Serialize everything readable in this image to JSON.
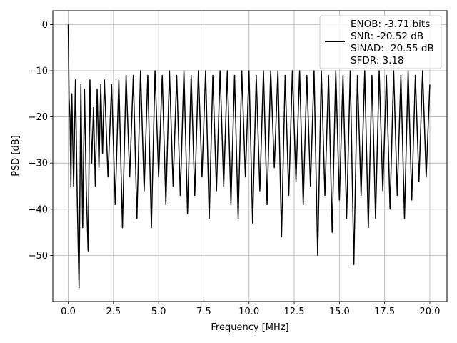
{
  "chart_data": {
    "type": "line",
    "xlabel": "Frequency [MHz]",
    "ylabel": "PSD [dB]",
    "xlim": [
      -0.85,
      20.95
    ],
    "ylim": [
      -60,
      3
    ],
    "xticks": [
      0.0,
      2.5,
      5.0,
      7.5,
      10.0,
      12.5,
      15.0,
      17.5,
      20.0
    ],
    "xtick_labels": [
      "0.0",
      "2.5",
      "5.0",
      "7.5",
      "10.0",
      "12.5",
      "15.0",
      "17.5",
      "20.0"
    ],
    "yticks": [
      0,
      -10,
      -20,
      -30,
      -40,
      -50
    ],
    "ytick_labels": [
      "0",
      "−10",
      "−20",
      "−30",
      "−40",
      "−50"
    ],
    "grid": true,
    "legend": {
      "position": "top-right",
      "entries": [
        "ENOB: -3.71 bits",
        "SNR: -20.52 dB",
        "SINAD: -20.55 dB",
        "SFDR: 3.18"
      ]
    },
    "series": [
      {
        "color": "#000000",
        "description": "noisy power spectral density from 0 to 20 MHz; peak 0 dB at 0 MHz, level mostly between -10 and -35 dB with dips to about -57 dB",
        "x": [
          0.0,
          0.02,
          0.05,
          0.1,
          0.15,
          0.2,
          0.3,
          0.4,
          0.5,
          0.6,
          0.7,
          0.8,
          0.9,
          1.0,
          1.1,
          1.2,
          1.3,
          1.4,
          1.5,
          1.6,
          1.7,
          1.8,
          1.9,
          2.0,
          2.2,
          2.4,
          2.6,
          2.8,
          3.0,
          3.2,
          3.4,
          3.6,
          3.8,
          4.0,
          4.2,
          4.4,
          4.6,
          4.8,
          5.0,
          5.2,
          5.4,
          5.6,
          5.8,
          6.0,
          6.2,
          6.4,
          6.6,
          6.8,
          7.0,
          7.2,
          7.4,
          7.6,
          7.8,
          8.0,
          8.2,
          8.4,
          8.6,
          8.8,
          9.0,
          9.2,
          9.4,
          9.6,
          9.8,
          10.0,
          10.2,
          10.4,
          10.6,
          10.8,
          11.0,
          11.2,
          11.4,
          11.6,
          11.8,
          12.0,
          12.2,
          12.4,
          12.6,
          12.8,
          13.0,
          13.2,
          13.4,
          13.6,
          13.8,
          14.0,
          14.2,
          14.4,
          14.6,
          14.8,
          15.0,
          15.2,
          15.4,
          15.6,
          15.8,
          16.0,
          16.2,
          16.4,
          16.6,
          16.8,
          17.0,
          17.2,
          17.4,
          17.6,
          17.8,
          18.0,
          18.2,
          18.4,
          18.6,
          18.8,
          19.0,
          19.2,
          19.4,
          19.6,
          19.8,
          20.0
        ],
        "y": [
          0.0,
          -6,
          -16,
          -20,
          -35,
          -15,
          -35,
          -12,
          -38,
          -57,
          -13,
          -44,
          -14,
          -36,
          -49,
          -12,
          -30,
          -18,
          -35,
          -14,
          -31,
          -13,
          -28,
          -12,
          -33,
          -13,
          -39,
          -12,
          -44,
          -11,
          -33,
          -11,
          -42,
          -10,
          -36,
          -11,
          -44,
          -10,
          -33,
          -11,
          -39,
          -10,
          -35,
          -11,
          -37,
          -10,
          -41,
          -11,
          -37,
          -10,
          -33,
          -10,
          -42,
          -11,
          -36,
          -10,
          -35,
          -10,
          -39,
          -11,
          -42,
          -10,
          -33,
          -10,
          -43,
          -11,
          -36,
          -10,
          -39,
          -10,
          -31,
          -10,
          -46,
          -11,
          -37,
          -10,
          -34,
          -10,
          -39,
          -11,
          -35,
          -10,
          -50,
          -10,
          -37,
          -11,
          -45,
          -10,
          -38,
          -11,
          -42,
          -10,
          -52,
          -11,
          -37,
          -10,
          -44,
          -11,
          -42,
          -10,
          -36,
          -11,
          -40,
          -10,
          -37,
          -11,
          -42,
          -10,
          -38,
          -11,
          -34,
          -10,
          -33,
          -13
        ]
      }
    ]
  }
}
